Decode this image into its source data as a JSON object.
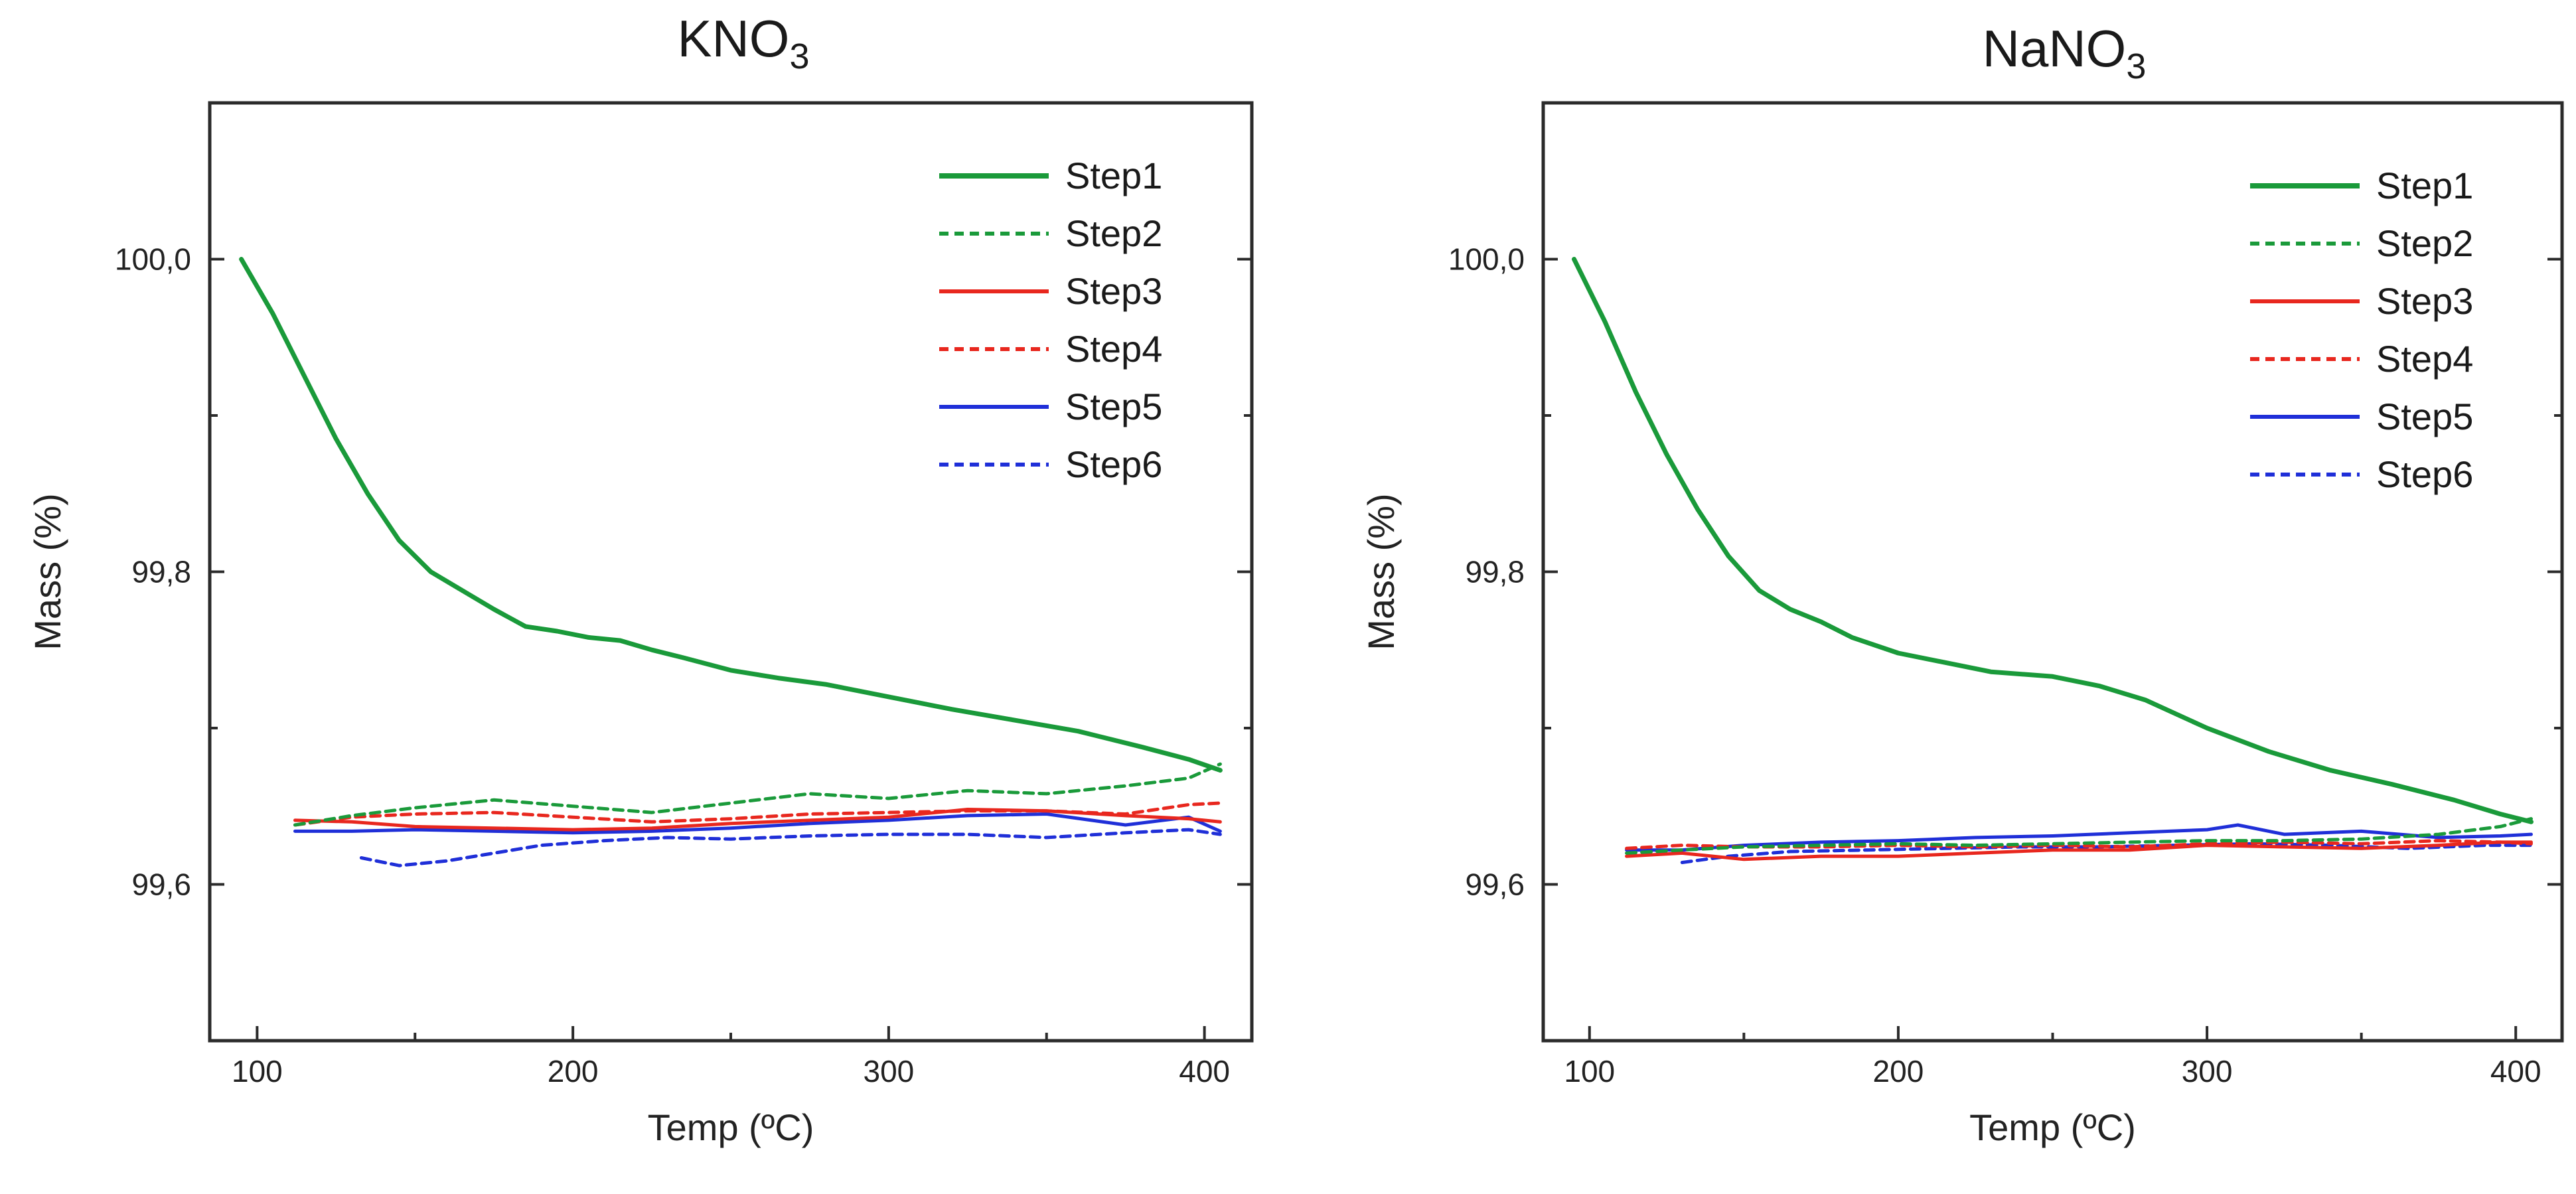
{
  "chart_data": [
    {
      "type": "line",
      "title": "KNO",
      "title_subscript": "3",
      "xlabel": "Temp (ºC)",
      "ylabel": "Mass (%)",
      "xlim": [
        85,
        415
      ],
      "ylim": [
        99.5,
        100.1
      ],
      "xticks": [
        100,
        200,
        300,
        400
      ],
      "xtick_labels": [
        "100",
        "200",
        "300",
        "400"
      ],
      "yticks": [
        99.6,
        99.8,
        100.0
      ],
      "ytick_labels": [
        "99,6",
        "99,8",
        "100,0"
      ],
      "minor_yticks": [
        99.7,
        99.9
      ],
      "legend_position": "top-right",
      "series": [
        {
          "name": "Step1",
          "color": "#1a9a3a",
          "style": "solid",
          "x": [
            95,
            105,
            115,
            125,
            135,
            145,
            155,
            165,
            175,
            185,
            195,
            205,
            215,
            225,
            235,
            250,
            265,
            280,
            300,
            320,
            340,
            360,
            380,
            395,
            405
          ],
          "values": [
            100.0,
            99.965,
            99.925,
            99.885,
            99.85,
            99.82,
            99.8,
            99.788,
            99.776,
            99.765,
            99.762,
            99.758,
            99.756,
            99.75,
            99.745,
            99.737,
            99.732,
            99.728,
            99.72,
            99.712,
            99.705,
            99.698,
            99.688,
            99.68,
            99.673
          ]
        },
        {
          "name": "Step2",
          "color": "#1a9a3a",
          "style": "dashed",
          "x": [
            112,
            130,
            150,
            175,
            200,
            225,
            250,
            275,
            300,
            325,
            350,
            375,
            395,
            405
          ],
          "values": [
            99.638,
            99.644,
            99.649,
            99.654,
            99.65,
            99.646,
            99.652,
            99.658,
            99.655,
            99.66,
            99.658,
            99.663,
            99.668,
            99.677
          ]
        },
        {
          "name": "Step3",
          "color": "#e8271e",
          "style": "solid",
          "x": [
            112,
            130,
            150,
            175,
            200,
            225,
            250,
            275,
            300,
            325,
            350,
            375,
            395,
            405
          ],
          "values": [
            99.641,
            99.64,
            99.637,
            99.636,
            99.635,
            99.636,
            99.639,
            99.641,
            99.643,
            99.648,
            99.647,
            99.644,
            99.642,
            99.64
          ]
        },
        {
          "name": "Step4",
          "color": "#e8271e",
          "style": "dashed",
          "x": [
            112,
            130,
            150,
            175,
            200,
            225,
            250,
            275,
            300,
            325,
            350,
            375,
            395,
            405
          ],
          "values": [
            99.638,
            99.643,
            99.645,
            99.646,
            99.643,
            99.64,
            99.642,
            99.645,
            99.646,
            99.647,
            99.647,
            99.645,
            99.651,
            99.652
          ]
        },
        {
          "name": "Step5",
          "color": "#1f2fd8",
          "style": "solid",
          "x": [
            112,
            130,
            150,
            175,
            200,
            225,
            250,
            275,
            300,
            325,
            350,
            375,
            395,
            405
          ],
          "values": [
            99.634,
            99.634,
            99.635,
            99.634,
            99.633,
            99.634,
            99.636,
            99.639,
            99.641,
            99.644,
            99.645,
            99.638,
            99.643,
            99.634
          ]
        },
        {
          "name": "Step6",
          "color": "#1f2fd8",
          "style": "dashed",
          "x": [
            133,
            145,
            160,
            175,
            190,
            210,
            230,
            250,
            275,
            300,
            325,
            350,
            375,
            395,
            405
          ],
          "values": [
            99.617,
            99.612,
            99.615,
            99.62,
            99.625,
            99.628,
            99.63,
            99.629,
            99.631,
            99.632,
            99.632,
            99.63,
            99.633,
            99.635,
            99.632
          ]
        }
      ]
    },
    {
      "type": "line",
      "title": "NaNO",
      "title_subscript": "3",
      "xlabel": "Temp (ºC)",
      "ylabel": "Mass (%)",
      "xlim": [
        85,
        415
      ],
      "ylim": [
        99.5,
        100.1
      ],
      "xticks": [
        100,
        200,
        300,
        400
      ],
      "xtick_labels": [
        "100",
        "200",
        "300",
        "400"
      ],
      "yticks": [
        99.6,
        99.8,
        100.0
      ],
      "ytick_labels": [
        "99,6",
        "99,8",
        "100,0"
      ],
      "minor_yticks": [
        99.7,
        99.9
      ],
      "legend_position": "top-right",
      "series": [
        {
          "name": "Step1",
          "color": "#1a9a3a",
          "style": "solid",
          "x": [
            95,
            105,
            115,
            125,
            135,
            145,
            155,
            165,
            175,
            185,
            200,
            215,
            230,
            250,
            265,
            280,
            300,
            320,
            340,
            360,
            380,
            395,
            405
          ],
          "values": [
            100.0,
            99.96,
            99.915,
            99.875,
            99.84,
            99.81,
            99.788,
            99.776,
            99.768,
            99.758,
            99.748,
            99.742,
            99.736,
            99.733,
            99.727,
            99.718,
            99.7,
            99.685,
            99.673,
            99.664,
            99.654,
            99.645,
            99.64
          ]
        },
        {
          "name": "Step2",
          "color": "#1a9a3a",
          "style": "dashed",
          "x": [
            112,
            130,
            150,
            175,
            200,
            225,
            250,
            275,
            300,
            325,
            350,
            375,
            395,
            405
          ],
          "values": [
            99.62,
            99.622,
            99.624,
            99.625,
            99.626,
            99.625,
            99.626,
            99.627,
            99.628,
            99.628,
            99.629,
            99.632,
            99.637,
            99.642
          ]
        },
        {
          "name": "Step3",
          "color": "#e8271e",
          "style": "solid",
          "x": [
            112,
            130,
            150,
            175,
            200,
            225,
            250,
            275,
            300,
            325,
            350,
            375,
            395,
            405
          ],
          "values": [
            99.618,
            99.62,
            99.616,
            99.618,
            99.618,
            99.62,
            99.622,
            99.622,
            99.625,
            99.624,
            99.623,
            99.625,
            99.627,
            99.627
          ]
        },
        {
          "name": "Step4",
          "color": "#e8271e",
          "style": "dashed",
          "x": [
            112,
            130,
            150,
            175,
            200,
            225,
            250,
            275,
            300,
            325,
            350,
            375,
            395,
            405
          ],
          "values": [
            99.623,
            99.625,
            99.624,
            99.624,
            99.625,
            99.624,
            99.625,
            99.624,
            99.626,
            99.627,
            99.626,
            99.628,
            99.627,
            99.626
          ]
        },
        {
          "name": "Step5",
          "color": "#1f2fd8",
          "style": "solid",
          "x": [
            112,
            130,
            150,
            175,
            200,
            225,
            250,
            275,
            300,
            310,
            325,
            350,
            375,
            395,
            405
          ],
          "values": [
            99.622,
            99.622,
            99.625,
            99.627,
            99.628,
            99.63,
            99.631,
            99.633,
            99.635,
            99.638,
            99.632,
            99.634,
            99.63,
            99.631,
            99.632
          ]
        },
        {
          "name": "Step6",
          "color": "#1f2fd8",
          "style": "dashed",
          "x": [
            130,
            145,
            165,
            190,
            215,
            240,
            265,
            290,
            315,
            340,
            365,
            390,
            405
          ],
          "values": [
            99.614,
            99.618,
            99.621,
            99.622,
            99.623,
            99.624,
            99.624,
            99.625,
            99.626,
            99.625,
            99.623,
            99.625,
            99.625
          ]
        }
      ]
    }
  ]
}
